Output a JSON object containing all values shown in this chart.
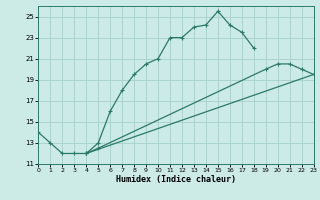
{
  "xlabel": "Humidex (Indice chaleur)",
  "bg_color": "#cceae6",
  "line_color": "#2a7a6a",
  "grid_color": "#aad4ce",
  "series1_x": [
    0,
    1,
    2,
    3,
    4,
    5,
    6,
    7,
    8,
    9,
    10,
    11,
    12,
    13,
    14,
    15,
    16,
    17,
    18
  ],
  "series1_y": [
    14.0,
    13.0,
    12.0,
    12.0,
    12.0,
    13.0,
    16.0,
    18.0,
    19.5,
    20.5,
    21.0,
    23.0,
    23.0,
    24.0,
    24.2,
    25.5,
    24.2,
    23.5,
    22.0
  ],
  "series2_x": [
    4,
    5,
    19,
    20,
    21,
    22,
    23
  ],
  "series2_y": [
    12.0,
    12.5,
    20.0,
    20.5,
    20.5,
    20.0,
    19.5
  ],
  "series3_x": [
    4,
    23
  ],
  "series3_y": [
    12.0,
    19.5
  ],
  "ylim": [
    11,
    26
  ],
  "xlim": [
    0,
    23
  ],
  "yticks": [
    11,
    13,
    15,
    17,
    19,
    21,
    23,
    25
  ],
  "xticks": [
    0,
    1,
    2,
    3,
    4,
    5,
    6,
    7,
    8,
    9,
    10,
    11,
    12,
    13,
    14,
    15,
    16,
    17,
    18,
    19,
    20,
    21,
    22,
    23
  ]
}
